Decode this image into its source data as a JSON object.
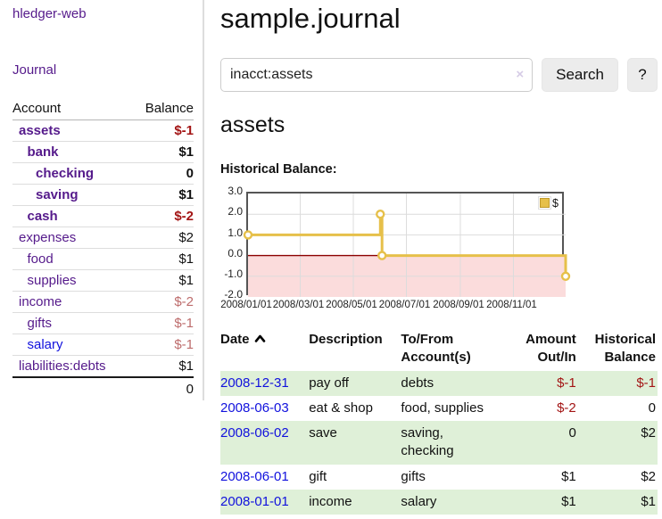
{
  "colors": {
    "link_purple": "#551a8b",
    "link_blue": "#1111dd",
    "neg_strong": "#a31515",
    "neg_soft": "#bd6c6c",
    "row_green": "#dff0d8",
    "chart_line": "#e6c04a",
    "chart_line_border": "#c09a2a",
    "chart_neg_fill": "#fbdcdc",
    "chart_zero_line": "#8b0000",
    "chart_frame": "#555555",
    "grid": "#dcdcdc"
  },
  "brand": "hledger-web",
  "nav": {
    "journal": "Journal"
  },
  "sidebar": {
    "header": {
      "account": "Account",
      "balance": "Balance"
    },
    "accounts": [
      {
        "name": "assets",
        "depth": 1,
        "balance": "$-1",
        "bold": true,
        "neg": "strong"
      },
      {
        "name": "bank",
        "depth": 2,
        "balance": "$1",
        "bold": true
      },
      {
        "name": "checking",
        "depth": 3,
        "balance": "0",
        "bold": true
      },
      {
        "name": "saving",
        "depth": 3,
        "balance": "$1",
        "bold": true
      },
      {
        "name": "cash",
        "depth": 2,
        "balance": "$-2",
        "bold": true,
        "neg": "strong"
      },
      {
        "name": "expenses",
        "depth": 1,
        "balance": "$2"
      },
      {
        "name": "food",
        "depth": 2,
        "balance": "$1"
      },
      {
        "name": "supplies",
        "depth": 2,
        "balance": "$1"
      },
      {
        "name": "income",
        "depth": 1,
        "balance": "$-2",
        "neg": "soft"
      },
      {
        "name": "gifts",
        "depth": 2,
        "balance": "$-1",
        "neg": "soft"
      },
      {
        "name": "salary",
        "depth": 2,
        "balance": "$-1",
        "neg": "soft",
        "link": "blue"
      },
      {
        "name": "liabilities:debts",
        "depth": 1,
        "balance": "$1"
      }
    ],
    "total": "0"
  },
  "main": {
    "title": "sample.journal",
    "search": {
      "value": "inacct:assets",
      "clear": "×",
      "button": "Search",
      "help": "?"
    },
    "heading": "assets",
    "section_label": "Historical Balance:"
  },
  "chart_data": {
    "type": "line",
    "step": true,
    "title": "Historical Balance",
    "legend_position": "top-right",
    "grid": true,
    "negative_region_shaded": true,
    "x_range": [
      "2008-01-01",
      "2008-12-31"
    ],
    "ylim": [
      -2,
      3
    ],
    "yticks": [
      3,
      2,
      1,
      0,
      -1,
      -2
    ],
    "xticks": [
      "2008/01/01",
      "2008/03/01",
      "2008/05/01",
      "2008/07/01",
      "2008/09/01",
      "2008/11/01"
    ],
    "series": [
      {
        "name": "$",
        "points": [
          [
            "2008-01-01",
            1
          ],
          [
            "2008-06-01",
            2
          ],
          [
            "2008-06-03",
            0
          ],
          [
            "2008-12-31",
            -1
          ]
        ]
      }
    ]
  },
  "register": {
    "headers": [
      "Date",
      "Description",
      "To/From Account(s)",
      "Amount Out/In",
      "Historical Balance"
    ],
    "sort": {
      "column": "Date",
      "indicator": "up"
    },
    "rows": [
      {
        "date": "2008-12-31",
        "description": "pay off",
        "accounts": "debts",
        "amount": "$-1",
        "balance": "$-1"
      },
      {
        "date": "2008-06-03",
        "description": "eat & shop",
        "accounts": "food, supplies",
        "amount": "$-2",
        "balance": "0"
      },
      {
        "date": "2008-06-02",
        "description": "save",
        "accounts": "saving, checking",
        "amount": "0",
        "balance": "$2"
      },
      {
        "date": "2008-06-01",
        "description": "gift",
        "accounts": "gifts",
        "amount": "$1",
        "balance": "$2"
      },
      {
        "date": "2008-01-01",
        "description": "income",
        "accounts": "salary",
        "amount": "$1",
        "balance": "$1"
      }
    ]
  }
}
